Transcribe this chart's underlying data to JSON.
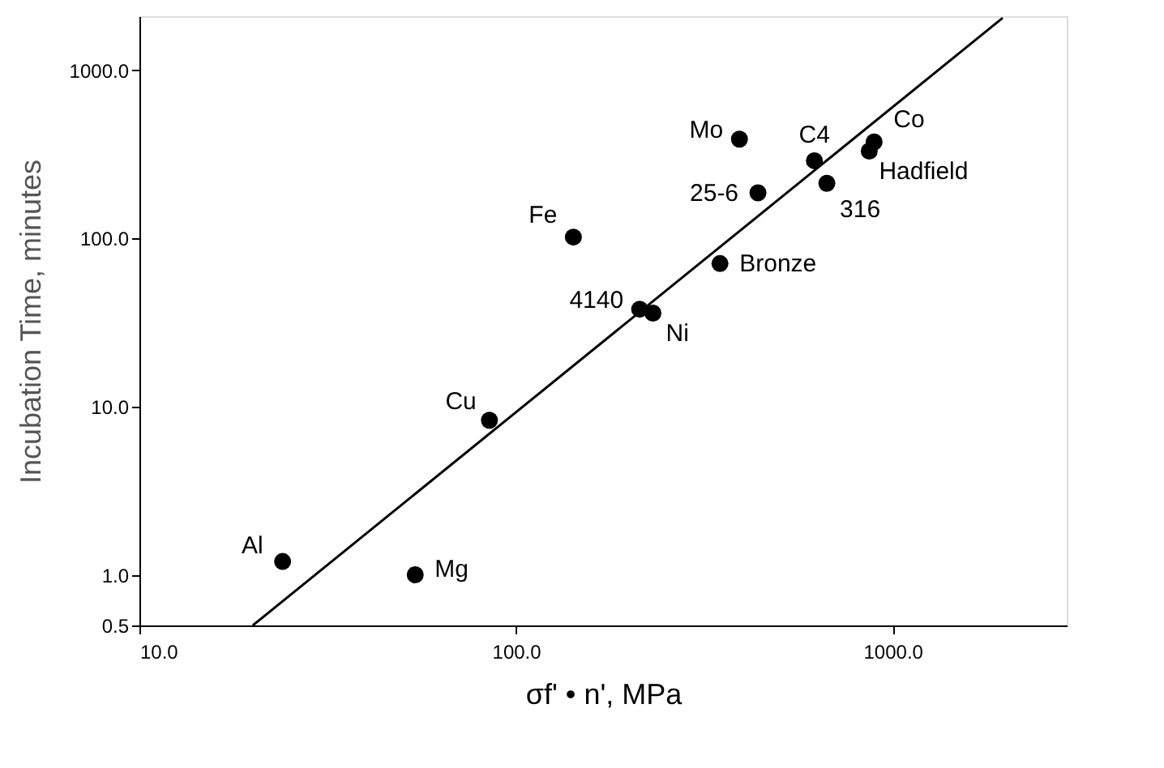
{
  "chart_data": {
    "type": "scatter",
    "xlabel": "σf' • n', MPa",
    "ylabel": "Incubation Time, minutes",
    "log": "xy",
    "xlim": [
      10,
      2900
    ],
    "ylim": [
      0.5,
      2100
    ],
    "xticks": [
      {
        "value": 10,
        "label": "10.0"
      },
      {
        "value": 100,
        "label": "100.0"
      },
      {
        "value": 1000,
        "label": "1000.0"
      }
    ],
    "yticks": [
      {
        "value": 0.5,
        "label": "0.5"
      },
      {
        "value": 1,
        "label": "1.0"
      },
      {
        "value": 10,
        "label": "10.0"
      },
      {
        "value": 100,
        "label": "100.0"
      },
      {
        "value": 1000,
        "label": "1000.0"
      }
    ],
    "series": [
      {
        "type": "scatter",
        "color": "#000000",
        "marker": "circle",
        "x": [
          24,
          54,
          85,
          142,
          213,
          231,
          348,
          392,
          439,
          620,
          669,
          893,
          867
        ],
        "values": [
          1.2,
          1.0,
          8.3,
          102,
          38,
          36,
          71,
          390,
          187,
          290,
          213,
          375,
          331
        ]
      },
      {
        "type": "line",
        "color": "#000000",
        "line_style": "solid",
        "x": [
          20,
          1960
        ],
        "values": [
          0.5,
          2050
        ]
      }
    ],
    "annotations": [
      {
        "text": "Al",
        "x": 24,
        "y": 1.2
      },
      {
        "text": "Mg",
        "x": 54,
        "y": 1.0
      },
      {
        "text": "Cu",
        "x": 85,
        "y": 8.3
      },
      {
        "text": "Fe",
        "x": 142,
        "y": 102
      },
      {
        "text": "4140",
        "x": 213,
        "y": 38
      },
      {
        "text": "Ni",
        "x": 231,
        "y": 36
      },
      {
        "text": "Bronze",
        "x": 348,
        "y": 71
      },
      {
        "text": "Mo",
        "x": 392,
        "y": 390
      },
      {
        "text": "25-6",
        "x": 439,
        "y": 187
      },
      {
        "text": "C4",
        "x": 620,
        "y": 290
      },
      {
        "text": "316",
        "x": 669,
        "y": 213
      },
      {
        "text": "Co",
        "x": 893,
        "y": 375
      },
      {
        "text": "Hadfield",
        "x": 867,
        "y": 331
      }
    ]
  }
}
